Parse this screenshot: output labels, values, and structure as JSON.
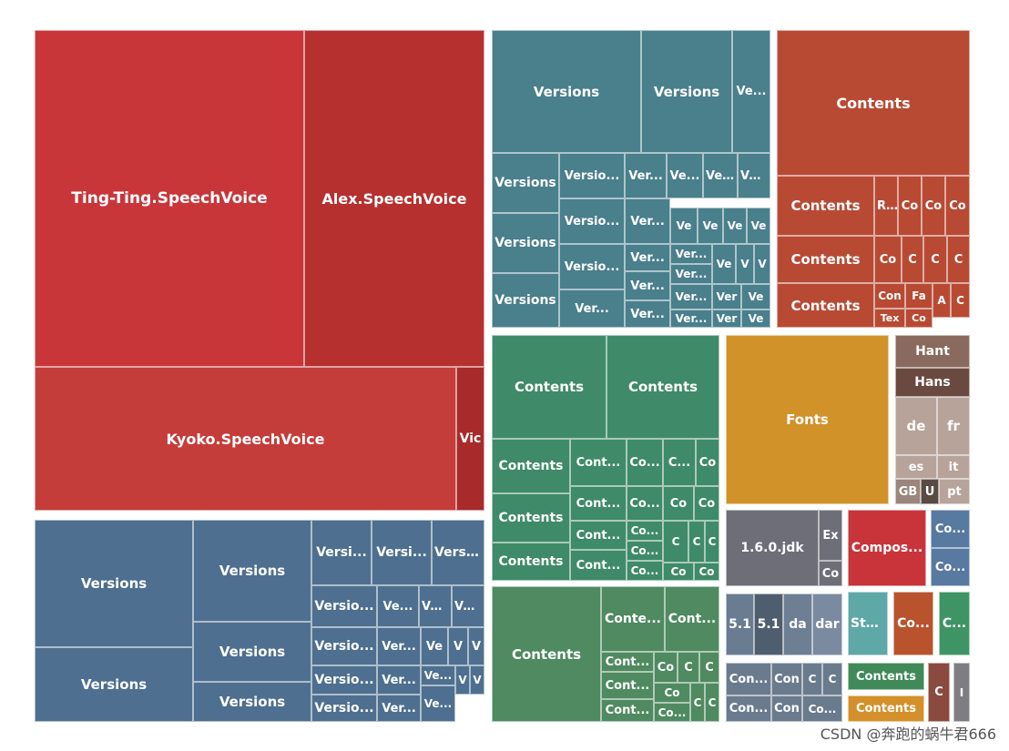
{
  "chart_data": {
    "type": "treemap",
    "title": "",
    "groups": [
      {
        "name": "speech-voices",
        "color": "#c8363a",
        "items": [
          {
            "label": "Ting-Ting.SpeechVoice",
            "value": 110
          },
          {
            "label": "Alex.SpeechVoice",
            "value": 72
          },
          {
            "label": "Kyoko.SpeechVoice",
            "value": 92
          },
          {
            "label": "Vic",
            "value": 6
          }
        ]
      },
      {
        "name": "versions-a",
        "color": "#4a7f8c",
        "items": [
          {
            "label": "Versions",
            "value": 14
          },
          {
            "label": "Versions",
            "value": 9
          },
          {
            "label": "Ve...",
            "value": 4
          },
          {
            "label": "Versions",
            "value": 4
          },
          {
            "label": "Versio...",
            "value": 4
          },
          {
            "label": "Ver...",
            "value": 3
          },
          {
            "label": "Ve...",
            "value": 2
          },
          {
            "label": "Ve...",
            "value": 2
          },
          {
            "label": "Ve...",
            "value": 2
          },
          {
            "label": "Versions",
            "value": 4
          },
          {
            "label": "Versio...",
            "value": 4
          },
          {
            "label": "Ver...",
            "value": 3
          },
          {
            "label": "Ve",
            "value": 1
          },
          {
            "label": "Ve",
            "value": 1
          },
          {
            "label": "Ve",
            "value": 1
          },
          {
            "label": "Ve",
            "value": 1
          },
          {
            "label": "Versions",
            "value": 4
          },
          {
            "label": "Versio...",
            "value": 4
          },
          {
            "label": "Ver...",
            "value": 3
          },
          {
            "label": "Ver...",
            "value": 2
          },
          {
            "label": "Ver...",
            "value": 2
          },
          {
            "label": "Ve",
            "value": 1
          },
          {
            "label": "V",
            "value": 1
          },
          {
            "label": "V",
            "value": 1
          },
          {
            "label": "Ver...",
            "value": 2
          },
          {
            "label": "Ver...",
            "value": 2
          },
          {
            "label": "Ver",
            "value": 1
          },
          {
            "label": "Ve",
            "value": 1
          },
          {
            "label": "Ver...",
            "value": 2
          },
          {
            "label": "Ver...",
            "value": 2
          },
          {
            "label": "Ver",
            "value": 1
          },
          {
            "label": "Ve",
            "value": 1
          }
        ]
      },
      {
        "name": "contents-red",
        "color": "#b84a34",
        "items": [
          {
            "label": "Contents",
            "value": 18
          },
          {
            "label": "Contents",
            "value": 8
          },
          {
            "label": "Contents",
            "value": 7
          },
          {
            "label": "Contents",
            "value": 6
          },
          {
            "label": "RAW",
            "value": 2
          },
          {
            "label": "Co",
            "value": 2
          },
          {
            "label": "Co",
            "value": 2
          },
          {
            "label": "Co",
            "value": 2
          },
          {
            "label": "Co",
            "value": 2
          },
          {
            "label": "C",
            "value": 1
          },
          {
            "label": "C",
            "value": 1
          },
          {
            "label": "Con",
            "value": 1
          },
          {
            "label": "Fa",
            "value": 1
          },
          {
            "label": "A",
            "value": 1
          },
          {
            "label": "C",
            "value": 1
          },
          {
            "label": "Tex",
            "value": 1
          },
          {
            "label": "Co",
            "value": 1
          }
        ]
      },
      {
        "name": "versions-b",
        "color": "#4e6f8f",
        "items": [
          {
            "label": "Versions",
            "value": 16
          },
          {
            "label": "Versions",
            "value": 10
          },
          {
            "label": "Versions",
            "value": 14
          },
          {
            "label": "Versions",
            "value": 7
          },
          {
            "label": "Versions",
            "value": 7
          },
          {
            "label": "Versi...",
            "value": 4
          },
          {
            "label": "Versi...",
            "value": 4
          },
          {
            "label": "Versi...",
            "value": 4
          },
          {
            "label": "Versio...",
            "value": 3
          },
          {
            "label": "Ve...",
            "value": 2
          },
          {
            "label": "Ve...",
            "value": 2
          },
          {
            "label": "Ve...",
            "value": 2
          },
          {
            "label": "Versio...",
            "value": 3
          },
          {
            "label": "Ver...",
            "value": 2
          },
          {
            "label": "Ve",
            "value": 1
          },
          {
            "label": "V",
            "value": 1
          },
          {
            "label": "V",
            "value": 1
          },
          {
            "label": "Versio...",
            "value": 3
          },
          {
            "label": "Ver...",
            "value": 2
          },
          {
            "label": "Ve...",
            "value": 2
          },
          {
            "label": "V",
            "value": 1
          },
          {
            "label": "V",
            "value": 1
          },
          {
            "label": "Versio...",
            "value": 3
          },
          {
            "label": "Ver...",
            "value": 2
          },
          {
            "label": "Ve...",
            "value": 1
          }
        ]
      },
      {
        "name": "contents-green-a",
        "color": "#3f8a68",
        "items": [
          {
            "label": "Contents",
            "value": 12
          },
          {
            "label": "Contents",
            "value": 12
          },
          {
            "label": "Contents",
            "value": 5
          },
          {
            "label": "Cont...",
            "value": 4
          },
          {
            "label": "Co...",
            "value": 2
          },
          {
            "label": "C...",
            "value": 2
          },
          {
            "label": "Co",
            "value": 1
          },
          {
            "label": "Contents",
            "value": 5
          },
          {
            "label": "Cont...",
            "value": 4
          },
          {
            "label": "Co...",
            "value": 2
          },
          {
            "label": "Co",
            "value": 2
          },
          {
            "label": "Co",
            "value": 1
          },
          {
            "label": "Cont...",
            "value": 3
          },
          {
            "label": "Co...",
            "value": 2
          },
          {
            "label": "C",
            "value": 1
          },
          {
            "label": "C",
            "value": 1
          },
          {
            "label": "C",
            "value": 1
          },
          {
            "label": "Contents",
            "value": 5
          },
          {
            "label": "Cont...",
            "value": 3
          },
          {
            "label": "Co...",
            "value": 2
          },
          {
            "label": "Co",
            "value": 1
          },
          {
            "label": "Co",
            "value": 1
          }
        ]
      },
      {
        "name": "contents-green-b",
        "color": "#4f8a60",
        "items": [
          {
            "label": "Contents",
            "value": 16
          },
          {
            "label": "Conte...",
            "value": 5
          },
          {
            "label": "Cont...",
            "value": 5
          },
          {
            "label": "Cont...",
            "value": 3
          },
          {
            "label": "Co",
            "value": 1
          },
          {
            "label": "C",
            "value": 1
          },
          {
            "label": "C",
            "value": 1
          },
          {
            "label": "Cont...",
            "value": 3
          },
          {
            "label": "Co",
            "value": 1
          },
          {
            "label": "C",
            "value": 1
          },
          {
            "label": "C",
            "value": 1
          },
          {
            "label": "Cont...",
            "value": 3
          },
          {
            "label": "Co...",
            "value": 1
          },
          {
            "label": "C",
            "value": 1
          },
          {
            "label": "C",
            "value": 1
          }
        ]
      },
      {
        "name": "fonts",
        "color": "#d1922a",
        "items": [
          {
            "label": "Fonts",
            "value": 40
          }
        ]
      },
      {
        "name": "locales",
        "color": "#b7a39a",
        "items": [
          {
            "label": "Hant",
            "value": 3
          },
          {
            "label": "Hans",
            "value": 3
          },
          {
            "label": "de",
            "value": 4
          },
          {
            "label": "fr",
            "value": 3
          },
          {
            "label": "es",
            "value": 3
          },
          {
            "label": "it",
            "value": 3
          },
          {
            "label": "GB",
            "value": 1
          },
          {
            "label": "U",
            "value": 1
          },
          {
            "label": "pt",
            "value": 2
          }
        ]
      },
      {
        "name": "jdk",
        "color": "#6e6e78",
        "items": [
          {
            "label": "1.6.0.jdk",
            "value": 9
          },
          {
            "label": "Ex",
            "value": 2
          },
          {
            "label": "Co",
            "value": 2
          }
        ]
      },
      {
        "name": "compos",
        "color": "#c8343a",
        "items": [
          {
            "label": "Compos...",
            "value": 8
          }
        ]
      },
      {
        "name": "small-blue",
        "color": "#5879a0",
        "items": [
          {
            "label": "Co...",
            "value": 2
          },
          {
            "label": "Co...",
            "value": 2
          }
        ]
      },
      {
        "name": "versions-51",
        "color": "#6e7f94",
        "items": [
          {
            "label": "5.1",
            "value": 2
          },
          {
            "label": "5.1",
            "value": 2
          },
          {
            "label": "da",
            "value": 2
          },
          {
            "label": "dar",
            "value": 2
          }
        ]
      },
      {
        "name": "sta",
        "color": "#5ea8a8",
        "items": [
          {
            "label": "Sta...",
            "value": 3
          }
        ]
      },
      {
        "name": "co-orange",
        "color": "#b8532e",
        "items": [
          {
            "label": "Co...",
            "value": 3
          }
        ]
      },
      {
        "name": "c-green",
        "color": "#3f9466",
        "items": [
          {
            "label": "C...",
            "value": 3
          }
        ]
      },
      {
        "name": "con-grey",
        "color": "#6b7b8e",
        "items": [
          {
            "label": "Con...",
            "value": 2
          },
          {
            "label": "Con",
            "value": 2
          },
          {
            "label": "C",
            "value": 1
          },
          {
            "label": "C",
            "value": 1
          },
          {
            "label": "Con...",
            "value": 2
          },
          {
            "label": "Con",
            "value": 2
          },
          {
            "label": "Co...",
            "value": 1
          }
        ]
      },
      {
        "name": "contents-small-green",
        "color": "#3f8a58",
        "items": [
          {
            "label": "Contents",
            "value": 2
          }
        ]
      },
      {
        "name": "contents-small-orange",
        "color": "#d4902a",
        "items": [
          {
            "label": "Contents",
            "value": 2
          }
        ]
      },
      {
        "name": "c-brown",
        "color": "#8b4a40",
        "items": [
          {
            "label": "C",
            "value": 2
          }
        ]
      },
      {
        "name": "i-grey",
        "color": "#7d7d82",
        "items": [
          {
            "label": "I",
            "value": 1
          }
        ]
      }
    ]
  },
  "watermark": "CSDN @奔跑的蜗牛君666"
}
